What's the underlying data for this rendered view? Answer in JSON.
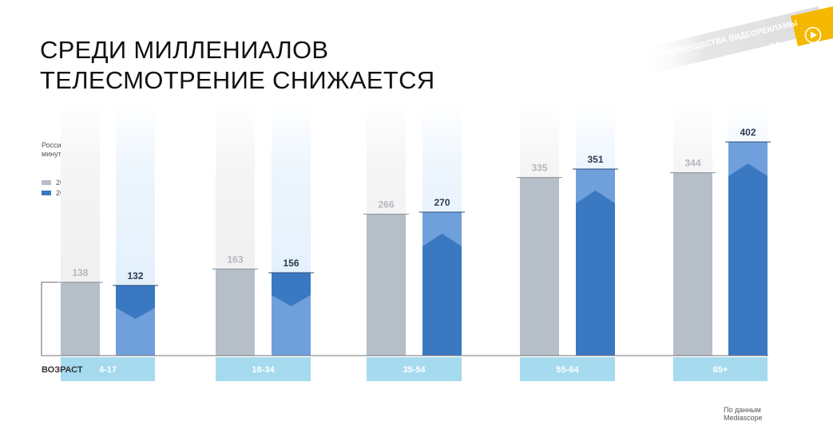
{
  "title_lines": [
    "СРЕДИ МИЛЛЕНИАЛОВ",
    "ТЕЛЕСМОТРЕНИЕ СНИЖАЕТСЯ"
  ],
  "ribbon": {
    "text": "ПРЕИМУЩЕСТВА ВИДЕОРЕКЛАМЫ",
    "page_number": "04",
    "icon": "play-icon",
    "accent_color": "#f5b800"
  },
  "legend_note": [
    "Россия 100K+,",
    "минут в сутки"
  ],
  "source_lines": [
    "По данным",
    "Mediascope"
  ],
  "chart_data": {
    "type": "bar",
    "title": "",
    "xlabel": "ВОЗРАСТ",
    "ylabel": "",
    "categories": [
      "4-17",
      "18-34",
      "35-54",
      "55-64",
      "65+"
    ],
    "series": [
      {
        "name": "2012",
        "values": [
          138,
          163,
          266,
          335,
          344
        ],
        "color": "#b6bec8"
      },
      {
        "name": "2016",
        "values": [
          132,
          156,
          270,
          351,
          402
        ],
        "color": "#3a78c2",
        "light_color": "#6fa0dc"
      }
    ],
    "ylim": [
      0,
      402
    ],
    "grid": false,
    "legend_position": "left"
  }
}
